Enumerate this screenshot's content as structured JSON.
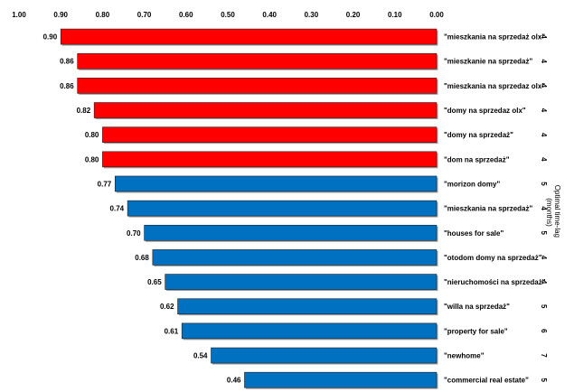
{
  "chart_data": {
    "type": "bar",
    "orientation": "horizontal",
    "x_axis_position": "top",
    "x_reversed": true,
    "xlim": [
      0,
      1.0
    ],
    "x_ticks": [
      "1.00",
      "0.90",
      "0.80",
      "0.70",
      "0.60",
      "0.50",
      "0.40",
      "0.30",
      "0.20",
      "0.10",
      "0.00"
    ],
    "categories": [
      "\"mieszkania na sprzedaż olx\"",
      "\"mieszkanie na sprzedaż\"",
      "\"mieszkania na sprzedaz olx\"",
      "\"domy na sprzedaz olx\"",
      "\"domy na sprzedaż\"",
      "\"dom na sprzedaż\"",
      "\"morizon domy\"",
      "\"mieszkania na sprzedaż\"",
      "\"houses for sale\"",
      "\"otodom domy na sprzedaż\"",
      "\"nieruchomości na sprzedaż\"",
      "\"willa na sprzedaż\"",
      "\"property for sale\"",
      "\"newhome\"",
      "\"commercial real estate\""
    ],
    "values": [
      0.9,
      0.86,
      0.86,
      0.82,
      0.8,
      0.8,
      0.77,
      0.74,
      0.7,
      0.68,
      0.65,
      0.62,
      0.61,
      0.54,
      0.46
    ],
    "value_labels": [
      "0.90",
      "0.86",
      "0.86",
      "0.82",
      "0.80",
      "0.80",
      "0.77",
      "0.74",
      "0.70",
      "0.68",
      "0.65",
      "0.62",
      "0.61",
      "0.54",
      "0.46"
    ],
    "colors": [
      "#ff0000",
      "#ff0000",
      "#ff0000",
      "#ff0000",
      "#ff0000",
      "#ff0000",
      "#0070c0",
      "#0070c0",
      "#0070c0",
      "#0070c0",
      "#0070c0",
      "#0070c0",
      "#0070c0",
      "#0070c0",
      "#0070c0"
    ],
    "optimal_time_lag": [
      "4",
      "4",
      "4",
      "4",
      "4",
      "4",
      "5",
      "4",
      "5",
      "4",
      "4",
      "5",
      "6",
      "7",
      "5"
    ],
    "secondary_axis_title": [
      "Optimal time-lag",
      "(months)"
    ],
    "grid": false,
    "legend": "none"
  }
}
